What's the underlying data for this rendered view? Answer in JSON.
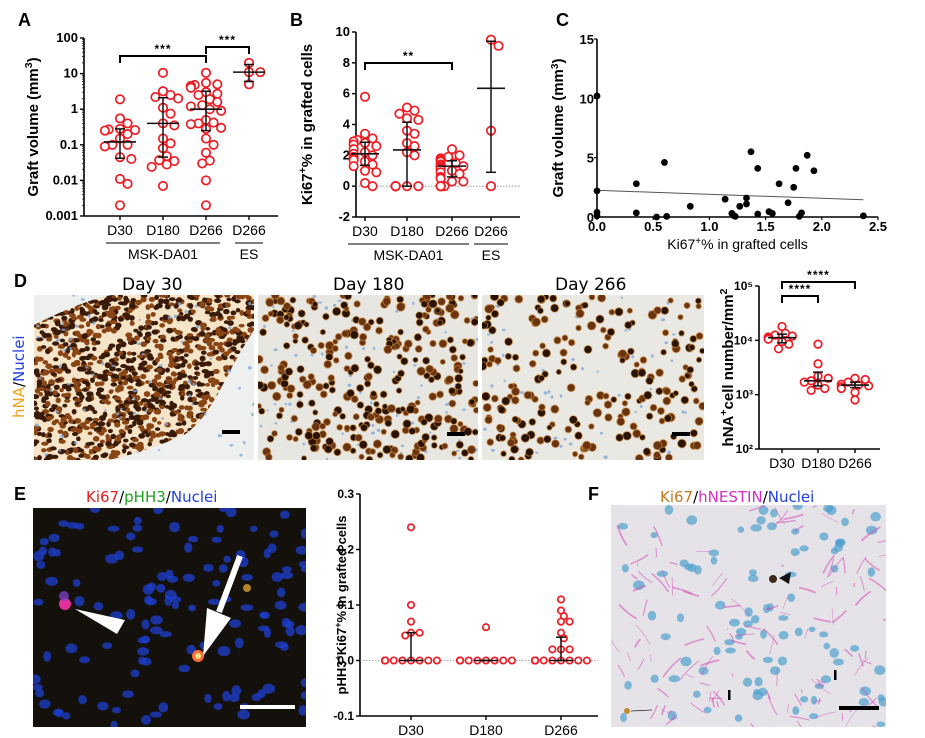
{
  "panels": {
    "A": {
      "letter": "A"
    },
    "B": {
      "letter": "B"
    },
    "C": {
      "letter": "C"
    },
    "D": {
      "letter": "D",
      "image_titles": [
        "Day 30",
        "Day 180",
        "Day 266"
      ],
      "stain_label": {
        "parts": [
          {
            "text": "hNA",
            "color": "#f0a020"
          },
          {
            "text": "/",
            "color": "#000000"
          },
          {
            "text": "Nuclei",
            "color": "#2040e0"
          }
        ]
      }
    },
    "E": {
      "letter": "E",
      "stain_label": {
        "parts": [
          {
            "text": "Ki67",
            "color": "#e02020"
          },
          {
            "text": "/",
            "color": "#000000"
          },
          {
            "text": "pHH3",
            "color": "#20a020"
          },
          {
            "text": "/",
            "color": "#000000"
          },
          {
            "text": "Nuclei",
            "color": "#2040e0"
          }
        ]
      }
    },
    "F": {
      "letter": "F",
      "stain_label": {
        "parts": [
          {
            "text": "Ki67",
            "color": "#c07820"
          },
          {
            "text": "/",
            "color": "#000000"
          },
          {
            "text": "hNESTIN",
            "color": "#d030c0"
          },
          {
            "text": "/",
            "color": "#000000"
          },
          {
            "text": "Nuclei",
            "color": "#2040e0"
          }
        ]
      }
    }
  },
  "colors": {
    "marker": "#ee1c24",
    "errorbar": "#111111",
    "scatter": "#000000"
  },
  "chart_data": [
    {
      "id": "A",
      "type": "scatter",
      "scale": "log",
      "title": "",
      "ylabel": "Graft volume (mm3)",
      "ylim": [
        0.001,
        100
      ],
      "yticks": [
        "0.001",
        "0.01",
        "0.1",
        "1",
        "10",
        "100"
      ],
      "categories": [
        "D30",
        "D180",
        "D266",
        "D266"
      ],
      "groups": [
        {
          "label": "MSK-DA01",
          "span": [
            0,
            2
          ]
        },
        {
          "label": "ES",
          "span": [
            3,
            3
          ]
        }
      ],
      "series": [
        {
          "name": "D30",
          "values": [
            1.9,
            0.55,
            0.4,
            0.28,
            0.27,
            0.26,
            0.25,
            0.2,
            0.15,
            0.1,
            0.1,
            0.09,
            0.045,
            0.04,
            0.011,
            0.008,
            0.002
          ],
          "median": 0.12,
          "q1": 0.042,
          "q3": 0.28
        },
        {
          "name": "D180",
          "values": [
            10.5,
            3.2,
            2.5,
            2.2,
            2.0,
            1.1,
            0.75,
            0.4,
            0.35,
            0.15,
            0.11,
            0.08,
            0.048,
            0.037,
            0.035,
            0.028,
            0.024,
            0.007
          ],
          "median": 0.4,
          "q1": 0.045,
          "q3": 2.1
        },
        {
          "name": "D266 MSK-DA01",
          "values": [
            10.5,
            5.5,
            5.0,
            4.8,
            4.5,
            4.2,
            4.0,
            3.0,
            2.7,
            2.5,
            1.9,
            1.6,
            1.3,
            1.2,
            1.0,
            0.9,
            0.5,
            0.42,
            0.4,
            0.38,
            0.3,
            0.28,
            0.15,
            0.1,
            0.06,
            0.036,
            0.03,
            0.01,
            0.002
          ],
          "median": 1.0,
          "q1": 0.25,
          "q3": 3.2
        },
        {
          "name": "D266 ES",
          "values": [
            20,
            11,
            11,
            5
          ],
          "median": 11,
          "q1": 6,
          "q3": 18
        }
      ],
      "annotations": [
        {
          "from": 0,
          "to": 2,
          "text": "***",
          "level": 0
        },
        {
          "from": 2,
          "to": 3,
          "text": "***",
          "level": 1
        }
      ]
    },
    {
      "id": "B",
      "type": "scatter",
      "title": "",
      "ylabel": "Ki67+% in grafted cells",
      "ylim": [
        -2,
        10
      ],
      "yticks": [
        "-2",
        "0",
        "2",
        "4",
        "6",
        "8",
        "10"
      ],
      "categories": [
        "D30",
        "D180",
        "D266",
        "D266"
      ],
      "groups": [
        {
          "label": "MSK-DA01",
          "span": [
            0,
            2
          ]
        },
        {
          "label": "ES",
          "span": [
            3,
            3
          ]
        }
      ],
      "series": [
        {
          "name": "D30",
          "values": [
            5.8,
            3.4,
            3.1,
            3.0,
            2.9,
            2.8,
            2.7,
            2.6,
            2.4,
            2.2,
            2.1,
            2.0,
            1.9,
            1.8,
            1.7,
            1.6,
            1.4,
            1.3,
            1.0,
            0.9,
            0.2,
            0.0
          ],
          "median": 2.1,
          "q1": 1.35,
          "q3": 2.85
        },
        {
          "name": "D180",
          "values": [
            5.1,
            4.9,
            4.7,
            4.4,
            4.3,
            3.6,
            3.4,
            2.8,
            2.6,
            2.2,
            2.0,
            0,
            0,
            0,
            0,
            0,
            0,
            0,
            0,
            0
          ],
          "median": 2.35,
          "q1": 0.0,
          "q3": 4.15
        },
        {
          "name": "D266 MSK-DA01",
          "values": [
            2.4,
            2.0,
            1.9,
            1.8,
            1.8,
            1.7,
            1.6,
            1.5,
            1.4,
            1.4,
            1.3,
            1.3,
            1.2,
            1.1,
            1.0,
            0.9,
            0.8,
            0.6,
            0.5,
            0.3,
            0.3,
            0,
            0,
            0,
            0,
            0,
            0
          ],
          "median": 1.3,
          "q1": 0.6,
          "q3": 1.65
        },
        {
          "name": "D266 ES",
          "values": [
            9.5,
            9.1,
            3.6,
            0.0
          ],
          "median": 6.35,
          "q1": 0.9,
          "q3": 9.4
        }
      ],
      "reference_line": 0,
      "annotations": [
        {
          "from": 0,
          "to": 2,
          "text": "**",
          "level": 0
        }
      ]
    },
    {
      "id": "C",
      "type": "scatter",
      "title": "",
      "xlabel": "Ki67+% in grafted cells",
      "ylabel": "Graft volume (mm3)",
      "xlim": [
        0,
        2.5
      ],
      "ylim": [
        0,
        15
      ],
      "xticks": [
        "0.0",
        "0.5",
        "1.0",
        "1.5",
        "2.0",
        "2.5"
      ],
      "yticks": [
        "0",
        "5",
        "10",
        "15"
      ],
      "points": [
        [
          0.0,
          10.2
        ],
        [
          0.0,
          2.2
        ],
        [
          0.0,
          0.4
        ],
        [
          0.0,
          0.1
        ],
        [
          0.35,
          2.8
        ],
        [
          0.35,
          0.35
        ],
        [
          0.53,
          0.0
        ],
        [
          0.6,
          4.6
        ],
        [
          0.62,
          0.05
        ],
        [
          0.83,
          0.9
        ],
        [
          1.14,
          1.5
        ],
        [
          1.2,
          0.3
        ],
        [
          1.22,
          0.1
        ],
        [
          1.23,
          0.05
        ],
        [
          1.27,
          0.9
        ],
        [
          1.33,
          1.1
        ],
        [
          1.33,
          1.6
        ],
        [
          1.37,
          5.5
        ],
        [
          1.43,
          4.1
        ],
        [
          1.43,
          0.25
        ],
        [
          1.53,
          0.45
        ],
        [
          1.56,
          0.3
        ],
        [
          1.62,
          2.8
        ],
        [
          1.7,
          1.2
        ],
        [
          1.75,
          2.5
        ],
        [
          1.77,
          4.1
        ],
        [
          1.8,
          0.05
        ],
        [
          1.82,
          0.35
        ],
        [
          1.87,
          5.2
        ],
        [
          1.93,
          3.9
        ],
        [
          2.37,
          0.1
        ]
      ],
      "regression": {
        "x": [
          0.0,
          2.37
        ],
        "y": [
          2.25,
          1.45
        ]
      }
    },
    {
      "id": "D",
      "type": "scatter",
      "scale": "log",
      "title": "",
      "ylabel": "hNA+cell number/mm2",
      "ylim": [
        100,
        100000
      ],
      "yticks": [
        "10²",
        "10³",
        "10⁴",
        "10⁵"
      ],
      "categories": [
        "D30",
        "D180",
        "D266"
      ],
      "series": [
        {
          "name": "D30",
          "values": [
            18000,
            13500,
            12500,
            12000,
            11500,
            11000,
            10500,
            9500,
            8500,
            7000
          ],
          "median": 11200,
          "q1": 9000,
          "q3": 13000
        },
        {
          "name": "D180",
          "values": [
            8500,
            3700,
            2200,
            2000,
            1800,
            1700,
            1500,
            1300,
            1200
          ],
          "median": 1800,
          "q1": 1450,
          "q3": 2600
        },
        {
          "name": "D266",
          "values": [
            2000,
            1900,
            1700,
            1550,
            1500,
            1450,
            1400,
            1300,
            1100,
            800
          ],
          "median": 1500,
          "q1": 1350,
          "q3": 1700
        }
      ],
      "annotations": [
        {
          "from": 0,
          "to": 2,
          "text": "****",
          "level": 1
        },
        {
          "from": 0,
          "to": 1,
          "text": "****",
          "level": 0
        }
      ]
    },
    {
      "id": "E",
      "type": "scatter",
      "title": "",
      "ylabel": "pHH3+Ki67+% in grafted cells",
      "ylim": [
        -0.1,
        0.3
      ],
      "yticks": [
        "-0.1",
        "0.0",
        "0.1",
        "0.2",
        "0.3"
      ],
      "categories": [
        "D30",
        "D180",
        "D266"
      ],
      "series": [
        {
          "name": "D30",
          "values": [
            0.24,
            0.1,
            0.07,
            0.05,
            0.05,
            0.045,
            0,
            0,
            0,
            0,
            0,
            0,
            0,
            0,
            0,
            0,
            0,
            0,
            0
          ],
          "median": 0.0,
          "q1": 0.0,
          "q3": 0.05
        },
        {
          "name": "D180",
          "values": [
            0.06,
            0,
            0,
            0,
            0,
            0,
            0,
            0,
            0,
            0,
            0,
            0
          ],
          "median": 0.0,
          "q1": 0.0,
          "q3": 0.0
        },
        {
          "name": "D266",
          "values": [
            0.11,
            0.09,
            0.08,
            0.07,
            0.07,
            0.05,
            0.04,
            0.02,
            0.02,
            0.02,
            0,
            0,
            0,
            0,
            0,
            0,
            0,
            0,
            0,
            0,
            0,
            0,
            0,
            0,
            0,
            0,
            0,
            0,
            0,
            0
          ],
          "median": 0.0,
          "q1": 0.0,
          "q3": 0.042
        }
      ],
      "reference_line": 0
    }
  ]
}
